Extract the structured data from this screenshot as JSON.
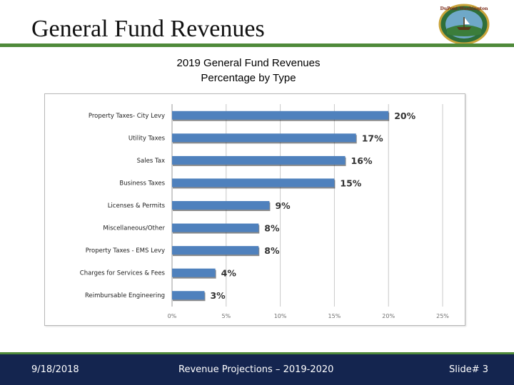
{
  "slide": {
    "title": "General Fund Revenues",
    "logo_text": "DuPont · Washington"
  },
  "chart_data": {
    "type": "bar",
    "orientation": "horizontal",
    "title": "2019 General Fund Revenues",
    "subtitle": "Percentage by Type",
    "categories": [
      "Property Taxes- City Levy",
      "Utility Taxes",
      "Sales Tax",
      "Business Taxes",
      "Licenses & Permits",
      "Miscellaneous/Other",
      "Property Taxes - EMS Levy",
      "Charges for Services & Fees",
      "Reimbursable Engineering"
    ],
    "values": [
      20,
      17,
      16,
      15,
      9,
      8,
      8,
      4,
      3
    ],
    "value_labels": [
      "20%",
      "17%",
      "16%",
      "15%",
      "9%",
      "8%",
      "8%",
      "4%",
      "3%"
    ],
    "xticks": [
      "0%",
      "5%",
      "10%",
      "15%",
      "20%",
      "25%"
    ],
    "xlim": [
      0,
      25
    ],
    "grid": true,
    "bar_color": "#4f81bd"
  },
  "footer": {
    "date": "9/18/2018",
    "center": "Revenue Projections – 2019-2020",
    "slide": "Slide# 3"
  }
}
